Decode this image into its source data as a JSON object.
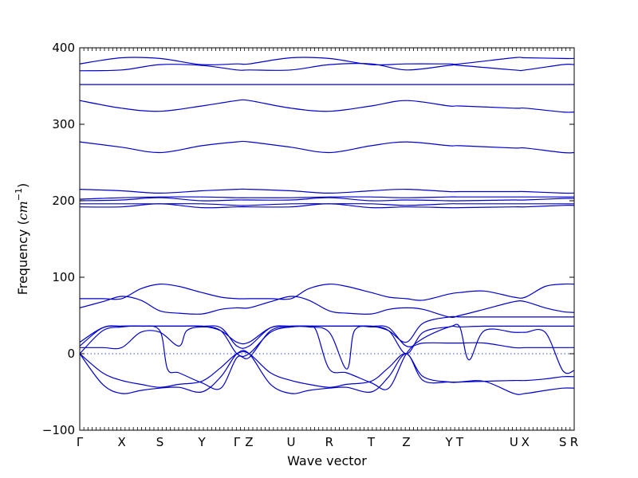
{
  "chart_data": {
    "type": "line",
    "title": "",
    "xlabel": "Wave vector",
    "ylabel": "Frequency",
    "ylabel_unit": "cm",
    "ylabel_unit_exp": "−1",
    "ylim": [
      -100,
      400
    ],
    "yticks": [
      -100,
      0,
      100,
      200,
      300,
      400
    ],
    "grid": false,
    "legend": "none",
    "series_color": "#0000cc",
    "x_ticks": [
      {
        "label": "Γ",
        "x": 0.0
      },
      {
        "label": "X",
        "x": 0.55
      },
      {
        "label": "S",
        "x": 1.05
      },
      {
        "label": "Y",
        "x": 1.6
      },
      {
        "label": "Γ",
        "x": 2.06
      },
      {
        "label": "Z",
        "x": 2.22
      },
      {
        "label": "U",
        "x": 2.77
      },
      {
        "label": "R",
        "x": 3.27
      },
      {
        "label": "T",
        "x": 3.82
      },
      {
        "label": "Z",
        "x": 4.28
      },
      {
        "label": "Y",
        "x": 4.84
      },
      {
        "label": "T",
        "x": 4.98
      },
      {
        "label": "U",
        "x": 5.69
      },
      {
        "label": "X",
        "x": 5.84
      },
      {
        "label": "S",
        "x": 6.33
      },
      {
        "label": "R",
        "x": 6.48
      }
    ],
    "x_range": [
      0,
      6.48
    ],
    "bands": [
      {
        "name": "band-1",
        "x": [
          0,
          0.3,
          0.55,
          0.8,
          1.05,
          1.3,
          1.6,
          1.85,
          2.06,
          2.22,
          2.5,
          2.77,
          3.0,
          3.27,
          3.5,
          3.82,
          4.05,
          4.28,
          4.5,
          4.84,
          4.98,
          5.3,
          5.69,
          5.84,
          6.1,
          6.33,
          6.48
        ],
        "y": [
          0,
          -40,
          -52,
          -48,
          -45,
          -44,
          -50,
          -30,
          0,
          0,
          -40,
          -52,
          -48,
          -45,
          -44,
          -50,
          -30,
          0,
          -35,
          -37,
          -37,
          -36,
          -52,
          -52,
          -48,
          -45,
          -45
        ]
      },
      {
        "name": "band-2",
        "x": [
          0,
          0.3,
          0.55,
          0.8,
          1.05,
          1.3,
          1.6,
          1.85,
          2.06,
          2.22,
          2.5,
          2.77,
          3.0,
          3.27,
          3.5,
          3.82,
          4.05,
          4.28,
          4.5,
          4.84,
          4.98,
          5.3,
          5.69,
          5.84,
          6.1,
          6.33,
          6.48
        ],
        "y": [
          0,
          -25,
          -35,
          -40,
          -44,
          -40,
          -36,
          -18,
          0,
          0,
          -25,
          -35,
          -40,
          -44,
          -40,
          -36,
          -18,
          0,
          -30,
          -37,
          -37,
          -36,
          -35,
          -35,
          -33,
          -30,
          -30
        ]
      },
      {
        "name": "band-3",
        "x": [
          0,
          0.3,
          0.55,
          0.8,
          1.05,
          1.15,
          1.3,
          1.6,
          1.85,
          2.06,
          2.22,
          2.5,
          2.77,
          3.0,
          3.1,
          3.27,
          3.5,
          3.82,
          4.05,
          4.28,
          4.5,
          4.84,
          4.98,
          5.3,
          5.69,
          5.84,
          6.1,
          6.33,
          6.48
        ],
        "y": [
          0,
          30,
          35,
          36,
          30,
          -20,
          -25,
          -38,
          -45,
          -5,
          -5,
          30,
          35,
          36,
          30,
          -20,
          -25,
          -38,
          -45,
          0,
          20,
          35,
          35,
          36,
          36,
          36,
          36,
          36,
          36
        ]
      },
      {
        "name": "band-4",
        "x": [
          0,
          0.3,
          0.55,
          0.8,
          1.05,
          1.3,
          1.4,
          1.6,
          1.85,
          2.06,
          2.22,
          2.5,
          2.77,
          3.0,
          3.27,
          3.5,
          3.6,
          3.82,
          4.05,
          4.28,
          4.5,
          4.84,
          4.98,
          5.1,
          5.3,
          5.69,
          5.84,
          6.1,
          6.33,
          6.48
        ],
        "y": [
          8,
          8,
          8,
          28,
          28,
          10,
          30,
          35,
          30,
          0,
          0,
          28,
          35,
          35,
          28,
          -20,
          30,
          35,
          30,
          0,
          28,
          35,
          35,
          -8,
          30,
          28,
          28,
          28,
          -22,
          -22
        ]
      },
      {
        "name": "band-5",
        "x": [
          0,
          0.3,
          0.55,
          0.8,
          1.05,
          1.3,
          1.6,
          1.85,
          2.06,
          2.22,
          2.5,
          2.77,
          3.0,
          3.27,
          3.5,
          3.82,
          4.05,
          4.28,
          4.5,
          4.84,
          4.98,
          5.3,
          5.69,
          5.84,
          6.1,
          6.33,
          6.48
        ],
        "y": [
          10,
          34,
          36,
          36,
          36,
          36,
          36,
          34,
          10,
          10,
          34,
          36,
          36,
          36,
          36,
          36,
          34,
          10,
          14,
          14,
          14,
          14,
          8,
          8,
          8,
          8,
          8
        ]
      },
      {
        "name": "band-6",
        "x": [
          0,
          0.3,
          0.55,
          0.8,
          1.05,
          1.3,
          1.6,
          1.85,
          2.06,
          2.22,
          2.5,
          2.77,
          3.0,
          3.27,
          3.5,
          3.82,
          4.05,
          4.28,
          4.5,
          4.84,
          4.98,
          5.3,
          5.69,
          5.84,
          6.1,
          6.33,
          6.48
        ],
        "y": [
          15,
          34,
          36,
          36,
          36,
          36,
          36,
          30,
          15,
          15,
          34,
          36,
          36,
          36,
          36,
          36,
          30,
          15,
          40,
          48,
          48,
          48,
          48,
          48,
          48,
          48,
          48
        ]
      },
      {
        "name": "band-7",
        "x": [
          0,
          0.3,
          0.55,
          0.8,
          1.05,
          1.3,
          1.6,
          1.85,
          2.06,
          2.22,
          2.5,
          2.77,
          3.0,
          3.27,
          3.5,
          3.82,
          4.05,
          4.28,
          4.5,
          4.84,
          4.98,
          5.3,
          5.69,
          5.84,
          6.1,
          6.33,
          6.48
        ],
        "y": [
          60,
          68,
          75,
          70,
          56,
          53,
          52,
          58,
          60,
          60,
          68,
          75,
          70,
          56,
          53,
          52,
          58,
          60,
          58,
          48,
          50,
          58,
          68,
          68,
          60,
          55,
          54
        ]
      },
      {
        "name": "band-8",
        "x": [
          0,
          0.3,
          0.55,
          0.8,
          1.05,
          1.3,
          1.6,
          1.85,
          2.06,
          2.22,
          2.5,
          2.77,
          3.0,
          3.27,
          3.5,
          3.82,
          4.05,
          4.28,
          4.5,
          4.84,
          4.98,
          5.3,
          5.69,
          5.84,
          6.1,
          6.33,
          6.48
        ],
        "y": [
          72,
          72,
          72,
          85,
          91,
          88,
          80,
          74,
          72,
          72,
          72,
          72,
          85,
          91,
          88,
          80,
          74,
          72,
          70,
          78,
          80,
          82,
          74,
          74,
          88,
          91,
          91
        ]
      },
      {
        "name": "band-9",
        "x": [
          0,
          0.55,
          1.05,
          1.6,
          2.06,
          2.22,
          2.77,
          3.27,
          3.82,
          4.28,
          4.84,
          4.98,
          5.69,
          5.84,
          6.33,
          6.48
        ],
        "y": [
          192,
          192,
          196,
          191,
          192,
          192,
          192,
          196,
          191,
          192,
          191,
          191,
          192,
          192,
          194,
          194
        ]
      },
      {
        "name": "band-10",
        "x": [
          0,
          0.55,
          1.05,
          1.6,
          2.06,
          2.22,
          2.77,
          3.27,
          3.82,
          4.28,
          4.84,
          4.98,
          5.69,
          5.84,
          6.33,
          6.48
        ],
        "y": [
          196,
          196,
          196,
          196,
          194,
          194,
          196,
          196,
          196,
          194,
          196,
          196,
          196,
          196,
          196,
          196
        ]
      },
      {
        "name": "band-11",
        "x": [
          0,
          0.55,
          1.05,
          1.6,
          2.06,
          2.22,
          2.77,
          3.27,
          3.82,
          4.28,
          4.84,
          4.98,
          5.69,
          5.84,
          6.33,
          6.48
        ],
        "y": [
          200,
          201,
          204,
          200,
          201,
          201,
          201,
          204,
          200,
          201,
          200,
          200,
          201,
          201,
          203,
          203
        ]
      },
      {
        "name": "band-12",
        "x": [
          0,
          0.55,
          1.05,
          1.6,
          2.06,
          2.22,
          2.77,
          3.27,
          3.82,
          4.28,
          4.84,
          4.98,
          5.69,
          5.84,
          6.33,
          6.48
        ],
        "y": [
          202,
          204,
          205,
          205,
          204,
          204,
          204,
          205,
          205,
          204,
          205,
          205,
          205,
          205,
          205,
          205
        ]
      },
      {
        "name": "band-13",
        "x": [
          0,
          0.55,
          1.05,
          1.6,
          2.06,
          2.22,
          2.77,
          3.27,
          3.82,
          4.28,
          4.84,
          4.98,
          5.69,
          5.84,
          6.33,
          6.48
        ],
        "y": [
          215,
          213,
          210,
          213,
          215,
          215,
          213,
          210,
          213,
          215,
          212,
          212,
          212,
          212,
          210,
          210
        ]
      },
      {
        "name": "band-14",
        "x": [
          0,
          0.55,
          1.05,
          1.6,
          2.06,
          2.22,
          2.77,
          3.27,
          3.82,
          4.28,
          4.84,
          4.98,
          5.69,
          5.84,
          6.33,
          6.48
        ],
        "y": [
          277,
          270,
          263,
          272,
          277,
          277,
          270,
          263,
          272,
          277,
          272,
          272,
          269,
          269,
          263,
          263
        ]
      },
      {
        "name": "band-15",
        "x": [
          0,
          0.55,
          1.05,
          1.6,
          2.06,
          2.22,
          2.77,
          3.27,
          3.82,
          4.28,
          4.84,
          4.98,
          5.69,
          5.84,
          6.33,
          6.48
        ],
        "y": [
          331,
          321,
          317,
          324,
          331,
          331,
          321,
          317,
          324,
          331,
          324,
          324,
          321,
          321,
          316,
          316
        ]
      },
      {
        "name": "band-16",
        "x": [
          0,
          0.55,
          1.05,
          1.6,
          2.06,
          2.22,
          2.77,
          3.27,
          3.82,
          4.28,
          4.84,
          4.98,
          5.69,
          5.84,
          6.33,
          6.48
        ],
        "y": [
          352,
          352,
          352,
          352,
          352,
          352,
          352,
          352,
          352,
          352,
          352,
          352,
          352,
          352,
          352,
          352
        ]
      },
      {
        "name": "band-17",
        "x": [
          0,
          0.55,
          1.05,
          1.6,
          2.06,
          2.22,
          2.77,
          3.27,
          3.82,
          4.28,
          4.84,
          4.98,
          5.69,
          5.84,
          6.33,
          6.48
        ],
        "y": [
          370,
          371,
          378,
          377,
          371,
          371,
          371,
          378,
          379,
          371,
          377,
          377,
          371,
          371,
          378,
          378
        ]
      },
      {
        "name": "band-18",
        "x": [
          0,
          0.55,
          1.05,
          1.6,
          2.06,
          2.22,
          2.77,
          3.27,
          3.82,
          4.28,
          4.84,
          4.98,
          5.69,
          5.84,
          6.33,
          6.48
        ],
        "y": [
          379,
          387,
          386,
          378,
          379,
          379,
          387,
          386,
          378,
          379,
          379,
          379,
          387,
          387,
          386,
          386
        ]
      }
    ]
  }
}
